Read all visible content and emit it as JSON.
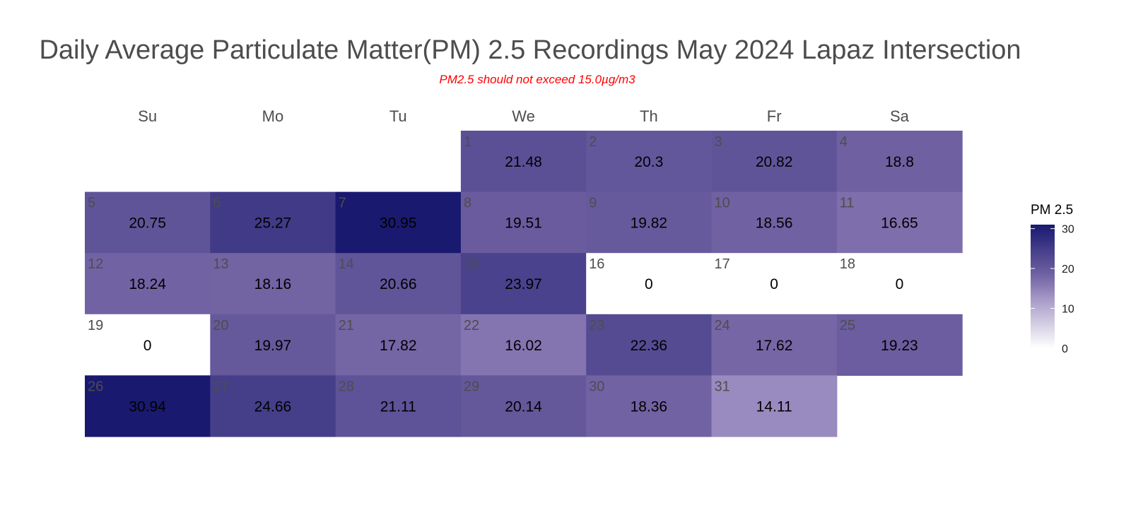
{
  "chart_data": {
    "type": "heatmap",
    "title": "Daily Average Particulate Matter(PM) 2.5 Recordings May 2024 Lapaz Intersection",
    "subtitle": "PM2.5 should not exceed 15.0µg/m3",
    "weekdays": [
      "Su",
      "Mo",
      "Tu",
      "We",
      "Th",
      "Fr",
      "Sa"
    ],
    "first_weekday_index": 3,
    "days": [
      1,
      2,
      3,
      4,
      5,
      6,
      7,
      8,
      9,
      10,
      11,
      12,
      13,
      14,
      15,
      16,
      17,
      18,
      19,
      20,
      21,
      22,
      23,
      24,
      25,
      26,
      27,
      28,
      29,
      30,
      31
    ],
    "values": [
      21.48,
      20.3,
      20.82,
      18.8,
      20.75,
      25.27,
      30.95,
      19.51,
      19.82,
      18.56,
      16.65,
      18.24,
      18.16,
      20.66,
      23.97,
      0,
      0,
      0,
      0,
      19.97,
      17.82,
      16.02,
      22.36,
      17.62,
      19.23,
      30.94,
      24.66,
      21.11,
      20.14,
      18.36,
      14.11
    ],
    "legend": {
      "title": "PM 2.5",
      "ticks": [
        0,
        10,
        20,
        30
      ],
      "range": [
        0,
        31
      ]
    },
    "colors": {
      "low": "#ffffff",
      "mid": "#9a8cc0",
      "high": "#191970",
      "subtitle": "#ff0000"
    }
  }
}
